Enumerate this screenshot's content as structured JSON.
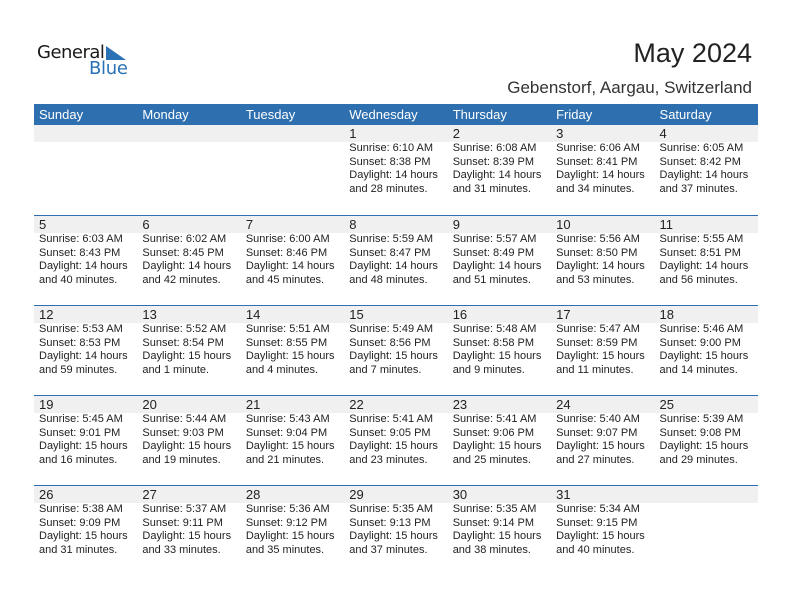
{
  "logo": {
    "line1": "General",
    "line2": "Blue",
    "accent": "#2a72b5"
  },
  "title": "May 2024",
  "location": "Gebenstorf, Aargau, Switzerland",
  "header_color": "#2e6fb0",
  "days": [
    "Sunday",
    "Monday",
    "Tuesday",
    "Wednesday",
    "Thursday",
    "Friday",
    "Saturday"
  ],
  "weeks": [
    [
      null,
      null,
      null,
      {
        "day": "1",
        "sunrise": "Sunrise: 6:10 AM",
        "sunset": "Sunset: 8:38 PM",
        "daylight1": "Daylight: 14 hours",
        "daylight2": "and 28 minutes."
      },
      {
        "day": "2",
        "sunrise": "Sunrise: 6:08 AM",
        "sunset": "Sunset: 8:39 PM",
        "daylight1": "Daylight: 14 hours",
        "daylight2": "and 31 minutes."
      },
      {
        "day": "3",
        "sunrise": "Sunrise: 6:06 AM",
        "sunset": "Sunset: 8:41 PM",
        "daylight1": "Daylight: 14 hours",
        "daylight2": "and 34 minutes."
      },
      {
        "day": "4",
        "sunrise": "Sunrise: 6:05 AM",
        "sunset": "Sunset: 8:42 PM",
        "daylight1": "Daylight: 14 hours",
        "daylight2": "and 37 minutes."
      }
    ],
    [
      {
        "day": "5",
        "sunrise": "Sunrise: 6:03 AM",
        "sunset": "Sunset: 8:43 PM",
        "daylight1": "Daylight: 14 hours",
        "daylight2": "and 40 minutes."
      },
      {
        "day": "6",
        "sunrise": "Sunrise: 6:02 AM",
        "sunset": "Sunset: 8:45 PM",
        "daylight1": "Daylight: 14 hours",
        "daylight2": "and 42 minutes."
      },
      {
        "day": "7",
        "sunrise": "Sunrise: 6:00 AM",
        "sunset": "Sunset: 8:46 PM",
        "daylight1": "Daylight: 14 hours",
        "daylight2": "and 45 minutes."
      },
      {
        "day": "8",
        "sunrise": "Sunrise: 5:59 AM",
        "sunset": "Sunset: 8:47 PM",
        "daylight1": "Daylight: 14 hours",
        "daylight2": "and 48 minutes."
      },
      {
        "day": "9",
        "sunrise": "Sunrise: 5:57 AM",
        "sunset": "Sunset: 8:49 PM",
        "daylight1": "Daylight: 14 hours",
        "daylight2": "and 51 minutes."
      },
      {
        "day": "10",
        "sunrise": "Sunrise: 5:56 AM",
        "sunset": "Sunset: 8:50 PM",
        "daylight1": "Daylight: 14 hours",
        "daylight2": "and 53 minutes."
      },
      {
        "day": "11",
        "sunrise": "Sunrise: 5:55 AM",
        "sunset": "Sunset: 8:51 PM",
        "daylight1": "Daylight: 14 hours",
        "daylight2": "and 56 minutes."
      }
    ],
    [
      {
        "day": "12",
        "sunrise": "Sunrise: 5:53 AM",
        "sunset": "Sunset: 8:53 PM",
        "daylight1": "Daylight: 14 hours",
        "daylight2": "and 59 minutes."
      },
      {
        "day": "13",
        "sunrise": "Sunrise: 5:52 AM",
        "sunset": "Sunset: 8:54 PM",
        "daylight1": "Daylight: 15 hours",
        "daylight2": "and 1 minute."
      },
      {
        "day": "14",
        "sunrise": "Sunrise: 5:51 AM",
        "sunset": "Sunset: 8:55 PM",
        "daylight1": "Daylight: 15 hours",
        "daylight2": "and 4 minutes."
      },
      {
        "day": "15",
        "sunrise": "Sunrise: 5:49 AM",
        "sunset": "Sunset: 8:56 PM",
        "daylight1": "Daylight: 15 hours",
        "daylight2": "and 7 minutes."
      },
      {
        "day": "16",
        "sunrise": "Sunrise: 5:48 AM",
        "sunset": "Sunset: 8:58 PM",
        "daylight1": "Daylight: 15 hours",
        "daylight2": "and 9 minutes."
      },
      {
        "day": "17",
        "sunrise": "Sunrise: 5:47 AM",
        "sunset": "Sunset: 8:59 PM",
        "daylight1": "Daylight: 15 hours",
        "daylight2": "and 11 minutes."
      },
      {
        "day": "18",
        "sunrise": "Sunrise: 5:46 AM",
        "sunset": "Sunset: 9:00 PM",
        "daylight1": "Daylight: 15 hours",
        "daylight2": "and 14 minutes."
      }
    ],
    [
      {
        "day": "19",
        "sunrise": "Sunrise: 5:45 AM",
        "sunset": "Sunset: 9:01 PM",
        "daylight1": "Daylight: 15 hours",
        "daylight2": "and 16 minutes."
      },
      {
        "day": "20",
        "sunrise": "Sunrise: 5:44 AM",
        "sunset": "Sunset: 9:03 PM",
        "daylight1": "Daylight: 15 hours",
        "daylight2": "and 19 minutes."
      },
      {
        "day": "21",
        "sunrise": "Sunrise: 5:43 AM",
        "sunset": "Sunset: 9:04 PM",
        "daylight1": "Daylight: 15 hours",
        "daylight2": "and 21 minutes."
      },
      {
        "day": "22",
        "sunrise": "Sunrise: 5:41 AM",
        "sunset": "Sunset: 9:05 PM",
        "daylight1": "Daylight: 15 hours",
        "daylight2": "and 23 minutes."
      },
      {
        "day": "23",
        "sunrise": "Sunrise: 5:41 AM",
        "sunset": "Sunset: 9:06 PM",
        "daylight1": "Daylight: 15 hours",
        "daylight2": "and 25 minutes."
      },
      {
        "day": "24",
        "sunrise": "Sunrise: 5:40 AM",
        "sunset": "Sunset: 9:07 PM",
        "daylight1": "Daylight: 15 hours",
        "daylight2": "and 27 minutes."
      },
      {
        "day": "25",
        "sunrise": "Sunrise: 5:39 AM",
        "sunset": "Sunset: 9:08 PM",
        "daylight1": "Daylight: 15 hours",
        "daylight2": "and 29 minutes."
      }
    ],
    [
      {
        "day": "26",
        "sunrise": "Sunrise: 5:38 AM",
        "sunset": "Sunset: 9:09 PM",
        "daylight1": "Daylight: 15 hours",
        "daylight2": "and 31 minutes."
      },
      {
        "day": "27",
        "sunrise": "Sunrise: 5:37 AM",
        "sunset": "Sunset: 9:11 PM",
        "daylight1": "Daylight: 15 hours",
        "daylight2": "and 33 minutes."
      },
      {
        "day": "28",
        "sunrise": "Sunrise: 5:36 AM",
        "sunset": "Sunset: 9:12 PM",
        "daylight1": "Daylight: 15 hours",
        "daylight2": "and 35 minutes."
      },
      {
        "day": "29",
        "sunrise": "Sunrise: 5:35 AM",
        "sunset": "Sunset: 9:13 PM",
        "daylight1": "Daylight: 15 hours",
        "daylight2": "and 37 minutes."
      },
      {
        "day": "30",
        "sunrise": "Sunrise: 5:35 AM",
        "sunset": "Sunset: 9:14 PM",
        "daylight1": "Daylight: 15 hours",
        "daylight2": "and 38 minutes."
      },
      {
        "day": "31",
        "sunrise": "Sunrise: 5:34 AM",
        "sunset": "Sunset: 9:15 PM",
        "daylight1": "Daylight: 15 hours",
        "daylight2": "and 40 minutes."
      },
      null
    ]
  ]
}
